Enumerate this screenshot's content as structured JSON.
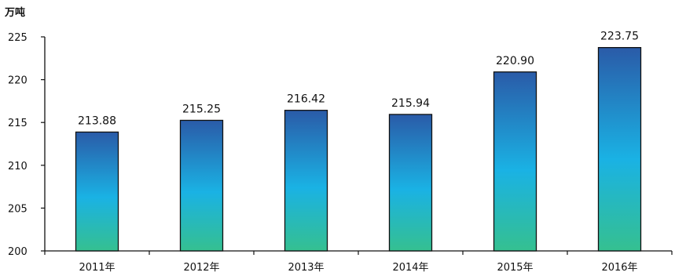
{
  "chart_data": {
    "type": "bar",
    "categories": [
      "2011年",
      "2012年",
      "2013年",
      "2014年",
      "2015年",
      "2016年"
    ],
    "values": [
      213.88,
      215.25,
      216.42,
      215.94,
      220.9,
      223.75
    ],
    "data_labels": [
      "213.88",
      "215.25",
      "216.42",
      "215.94",
      "220.90",
      "223.75"
    ],
    "unit": "万吨",
    "ylim": [
      200,
      225
    ],
    "yticks": [
      200,
      205,
      210,
      215,
      220,
      225
    ],
    "grid": false,
    "legend": "none",
    "colors": {
      "bar_top": "#2a5ba8",
      "bar_mid": "#1ab2e4",
      "bar_bottom": "#35c090",
      "bar_border": "#111111",
      "axis": "#111111"
    }
  }
}
